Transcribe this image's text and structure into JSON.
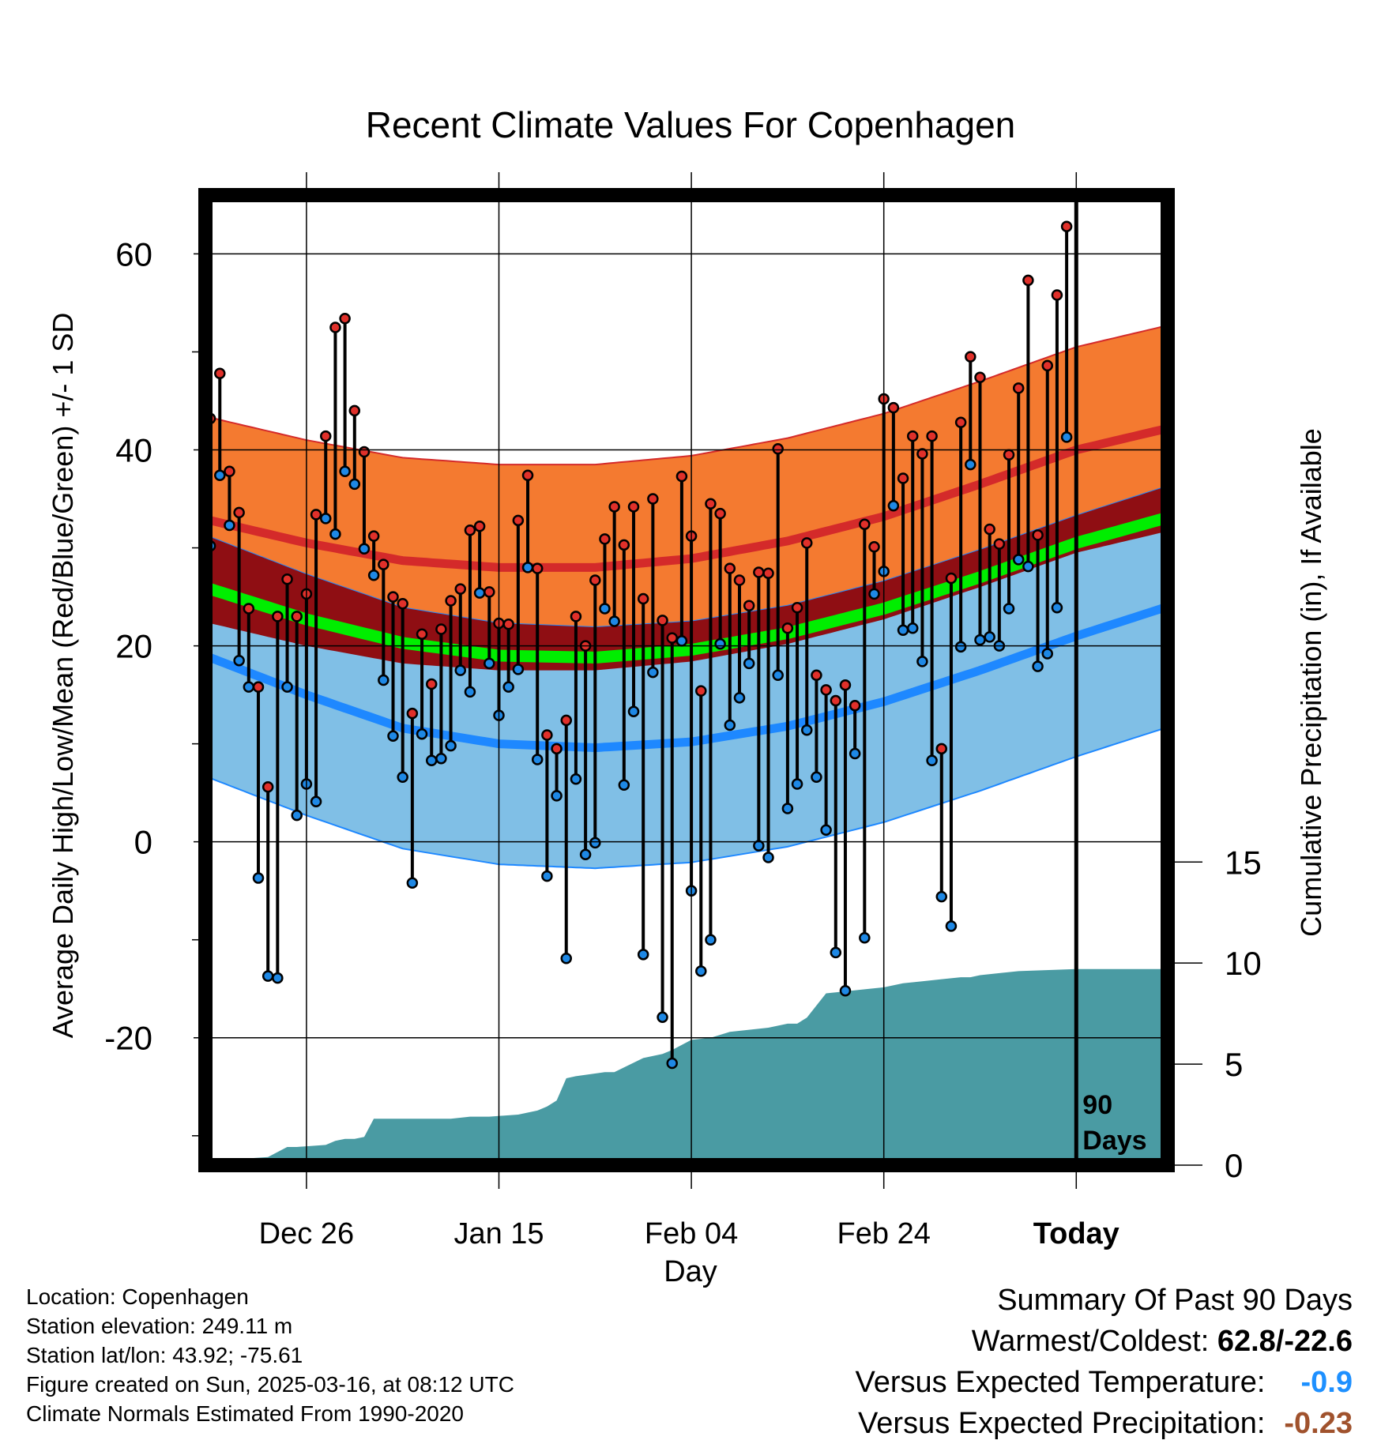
{
  "chart_data": {
    "type": "line",
    "title": "Recent Climate Values For Copenhagen",
    "xlabel": "Day",
    "ylabel": "Average Daily High/Low/Mean (Red/Blue/Green) +/- 1 SD",
    "y2label": "Cumulative Precipitation (in), If Available",
    "x_tick_labels": [
      "Dec 26",
      "Jan 15",
      "Feb 04",
      "Feb 24",
      "Today"
    ],
    "x_tick_days": [
      10,
      30,
      50,
      70,
      90
    ],
    "xlim": [
      -0.5,
      99.5
    ],
    "y_ticks": [
      -20,
      0,
      20,
      40,
      60
    ],
    "ylim": [
      -33,
      66
    ],
    "y2_ticks": [
      0,
      5,
      10,
      15
    ],
    "y2lim": [
      0,
      48
    ],
    "today_day": 90,
    "today_label_line1": "90",
    "today_label_line2": "Days",
    "grid": true,
    "normals": {
      "days": [
        0,
        10,
        20,
        30,
        40,
        50,
        60,
        70,
        80,
        90,
        99.5
      ],
      "high_mean": [
        32.8,
        30.5,
        28.7,
        28.0,
        28.0,
        28.9,
        30.7,
        33.2,
        36.5,
        40.0,
        42.2
      ],
      "high_sd": [
        10.5,
        10.5,
        10.5,
        10.5,
        10.5,
        10.5,
        10.5,
        10.5,
        10.5,
        10.5,
        10.5
      ],
      "low_mean": [
        18.8,
        15.0,
        11.6,
        10.0,
        9.6,
        10.2,
        11.8,
        14.3,
        17.5,
        21.0,
        24.0
      ],
      "low_sd": [
        12.3,
        12.3,
        12.3,
        12.3,
        12.3,
        12.3,
        12.3,
        12.3,
        12.3,
        12.3,
        12.3
      ],
      "mean": [
        25.8,
        22.7,
        20.3,
        19.0,
        18.8,
        19.6,
        21.3,
        23.8,
        27.0,
        30.5,
        33.1
      ],
      "colors": {
        "high_band": "#f47a30",
        "high_line": "#d42a2a",
        "overlap_band": "#8f0e13",
        "low_band": "#80bfe6",
        "low_line": "#1e88ff",
        "mean_line": "#00ee00",
        "precip_fill": "#4a9ba3"
      }
    },
    "series": [
      {
        "name": "High",
        "color": "#e0302a",
        "values": [
          43.2,
          47.8,
          37.8,
          33.6,
          23.8,
          15.8,
          5.6,
          23.0,
          26.8,
          23.0,
          25.3,
          33.4,
          41.4,
          52.5,
          53.4,
          44.0,
          39.8,
          31.2,
          28.3,
          25.0,
          24.3,
          13.1,
          21.2,
          16.1,
          21.7,
          24.6,
          25.8,
          31.8,
          32.2,
          25.5,
          22.3,
          22.2,
          32.8,
          37.4,
          27.9,
          10.9,
          9.5,
          12.4,
          23.0,
          20.0,
          26.7,
          30.9,
          34.2,
          30.3,
          34.2,
          24.8,
          35.0,
          22.6,
          20.8,
          37.3,
          31.2,
          15.4,
          34.5,
          33.5,
          27.9,
          26.7,
          24.1,
          27.5,
          27.4,
          40.1,
          21.8,
          23.9,
          30.5,
          17.0,
          15.5,
          14.4,
          16.0,
          13.9,
          32.4,
          30.1,
          45.2,
          44.3,
          37.1,
          41.4,
          39.6,
          41.4,
          9.5,
          26.9,
          42.8,
          49.5,
          47.4,
          31.9,
          30.4,
          39.5,
          46.3,
          57.3,
          31.3,
          48.6,
          55.8,
          62.8
        ]
      },
      {
        "name": "Low",
        "color": "#1e88e5",
        "values": [
          30.2,
          37.4,
          32.3,
          18.5,
          15.8,
          -3.7,
          -13.7,
          -13.9,
          15.8,
          2.7,
          5.9,
          4.1,
          33.0,
          31.4,
          37.8,
          36.5,
          29.9,
          27.2,
          16.5,
          10.8,
          6.6,
          -4.2,
          11.0,
          8.3,
          8.5,
          9.8,
          17.5,
          15.3,
          25.4,
          18.2,
          12.9,
          15.8,
          17.6,
          28.0,
          8.4,
          -3.5,
          4.7,
          -11.9,
          6.4,
          -1.3,
          -0.1,
          23.8,
          22.5,
          5.8,
          13.3,
          -11.5,
          17.3,
          -17.9,
          -22.6,
          20.5,
          -5.0,
          -13.2,
          -10.0,
          20.2,
          11.9,
          14.7,
          18.2,
          -0.4,
          -1.6,
          17.0,
          3.4,
          5.9,
          11.4,
          6.6,
          1.2,
          -11.3,
          -15.2,
          9.0,
          -9.8,
          25.3,
          27.6,
          34.3,
          21.6,
          21.8,
          18.4,
          8.3,
          -5.6,
          -8.6,
          19.9,
          38.5,
          20.6,
          20.9,
          20.0,
          23.8,
          28.8,
          28.1,
          17.9,
          19.2,
          23.9,
          41.3
        ]
      }
    ],
    "precip": {
      "days": [
        0,
        3,
        6,
        8,
        9,
        12,
        13,
        14,
        15,
        16,
        17,
        20,
        25,
        27,
        29,
        32,
        34,
        35,
        36,
        37,
        38,
        41,
        42,
        45,
        47,
        48,
        50,
        52,
        54,
        56,
        58,
        60,
        61,
        62,
        64,
        66,
        68,
        70,
        72,
        74,
        76,
        78,
        79,
        80,
        84,
        90,
        99.5
      ],
      "values": [
        0,
        0.3,
        0.4,
        0.9,
        0.9,
        1.0,
        1.2,
        1.3,
        1.3,
        1.4,
        2.3,
        2.3,
        2.3,
        2.4,
        2.4,
        2.5,
        2.7,
        2.9,
        3.2,
        4.3,
        4.4,
        4.6,
        4.6,
        5.3,
        5.5,
        5.7,
        6.2,
        6.3,
        6.6,
        6.7,
        6.8,
        7.0,
        7.0,
        7.3,
        8.5,
        8.6,
        8.7,
        8.8,
        9.0,
        9.1,
        9.2,
        9.3,
        9.3,
        9.4,
        9.6,
        9.7,
        9.7
      ]
    }
  },
  "footer": {
    "location": "Location: Copenhagen",
    "elevation": "Station elevation: 249.11 m",
    "latlon": "Station lat/lon: 43.92; -75.61",
    "created": "Figure created on Sun, 2025-03-16, at 08:12 UTC",
    "normals": "Climate Normals Estimated From 1990-2020"
  },
  "summary": {
    "heading": "Summary Of Past 90 Days",
    "warmest_coldest_label": "Warmest/Coldest:",
    "warmest_coldest_value": "62.8/-22.6",
    "temp_label": "Versus Expected Temperature:",
    "temp_value": "-0.9",
    "temp_color": "#1e90ff",
    "precip_label": "Versus Expected Precipitation:",
    "precip_value": "-0.23",
    "precip_color": "#a0522d"
  }
}
